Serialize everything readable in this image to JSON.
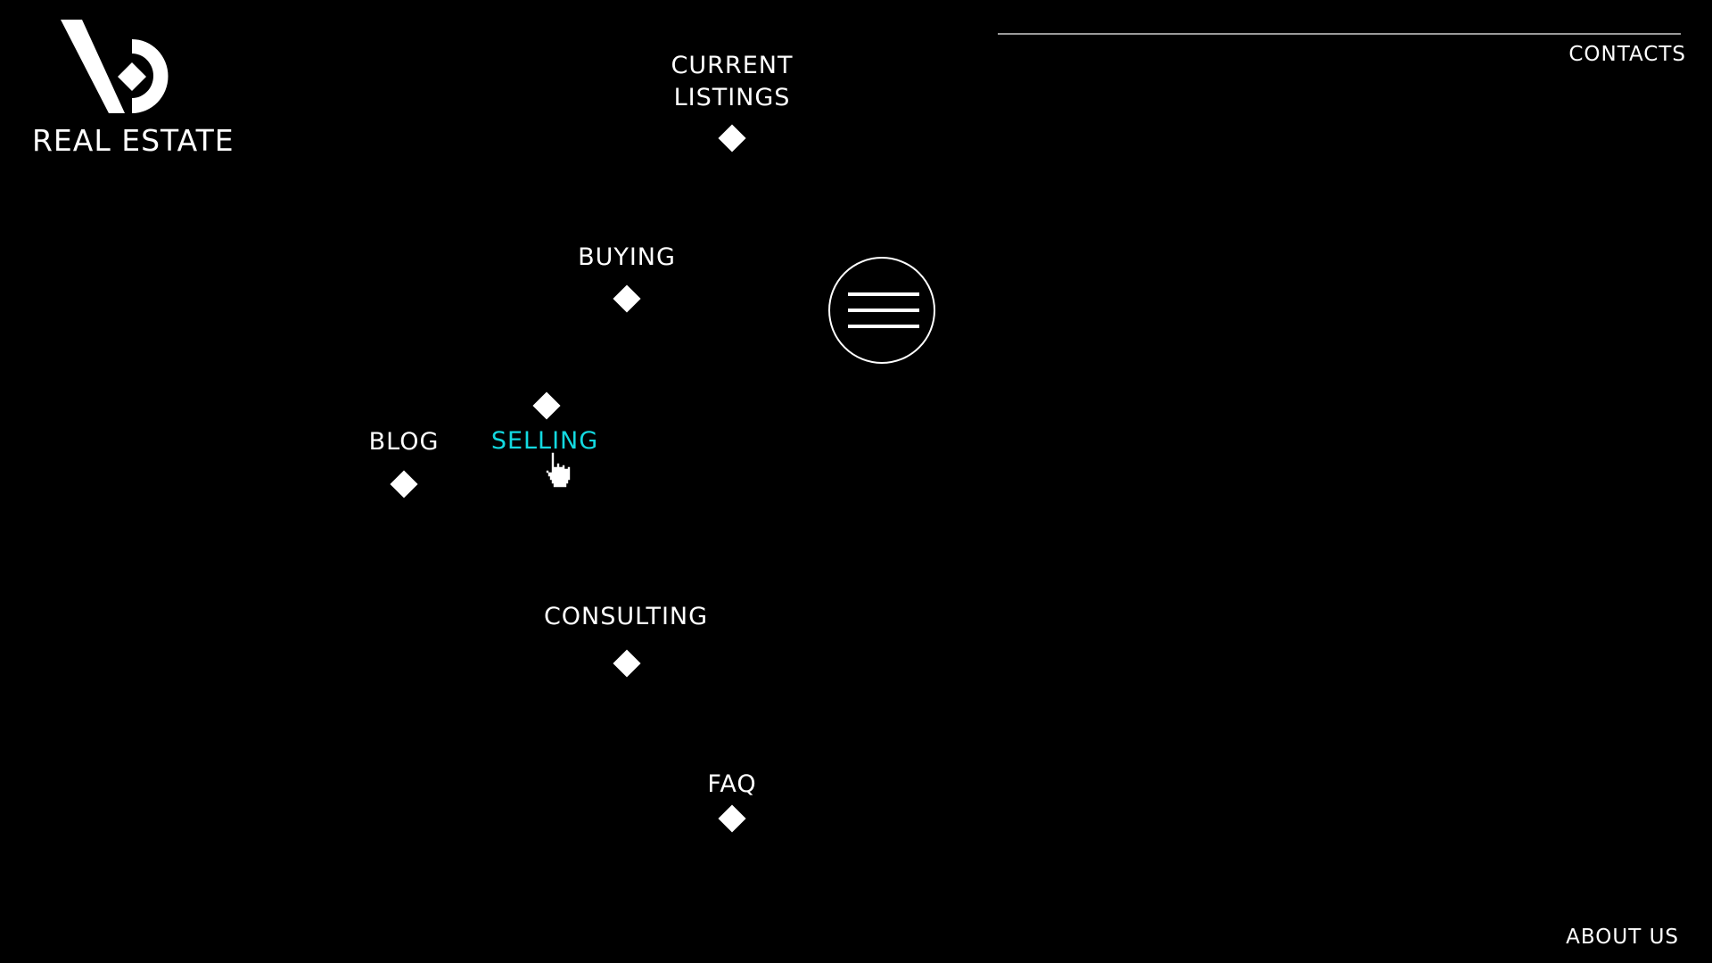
{
  "logo": {
    "text": "REAL ESTATE",
    "icon": "vd-monogram-icon"
  },
  "header": {
    "contacts_label": "CONTACTS"
  },
  "footer": {
    "about_label": "ABOUT US"
  },
  "menu_button": {
    "icon": "hamburger-icon"
  },
  "nav": {
    "current_listings": {
      "line1": "CURRENT",
      "line2": "LISTINGS"
    },
    "buying": {
      "label": "BUYING"
    },
    "selling": {
      "label": "SELLING",
      "active": true
    },
    "blog": {
      "label": "BLOG"
    },
    "consulting": {
      "label": "CONSULTING"
    },
    "faq": {
      "label": "FAQ"
    }
  },
  "colors": {
    "background": "#000000",
    "text": "#ffffff",
    "accent": "#13d9e0",
    "rule": "#9a9a9a"
  },
  "cursor": {
    "icon": "hand-pointer-icon"
  }
}
